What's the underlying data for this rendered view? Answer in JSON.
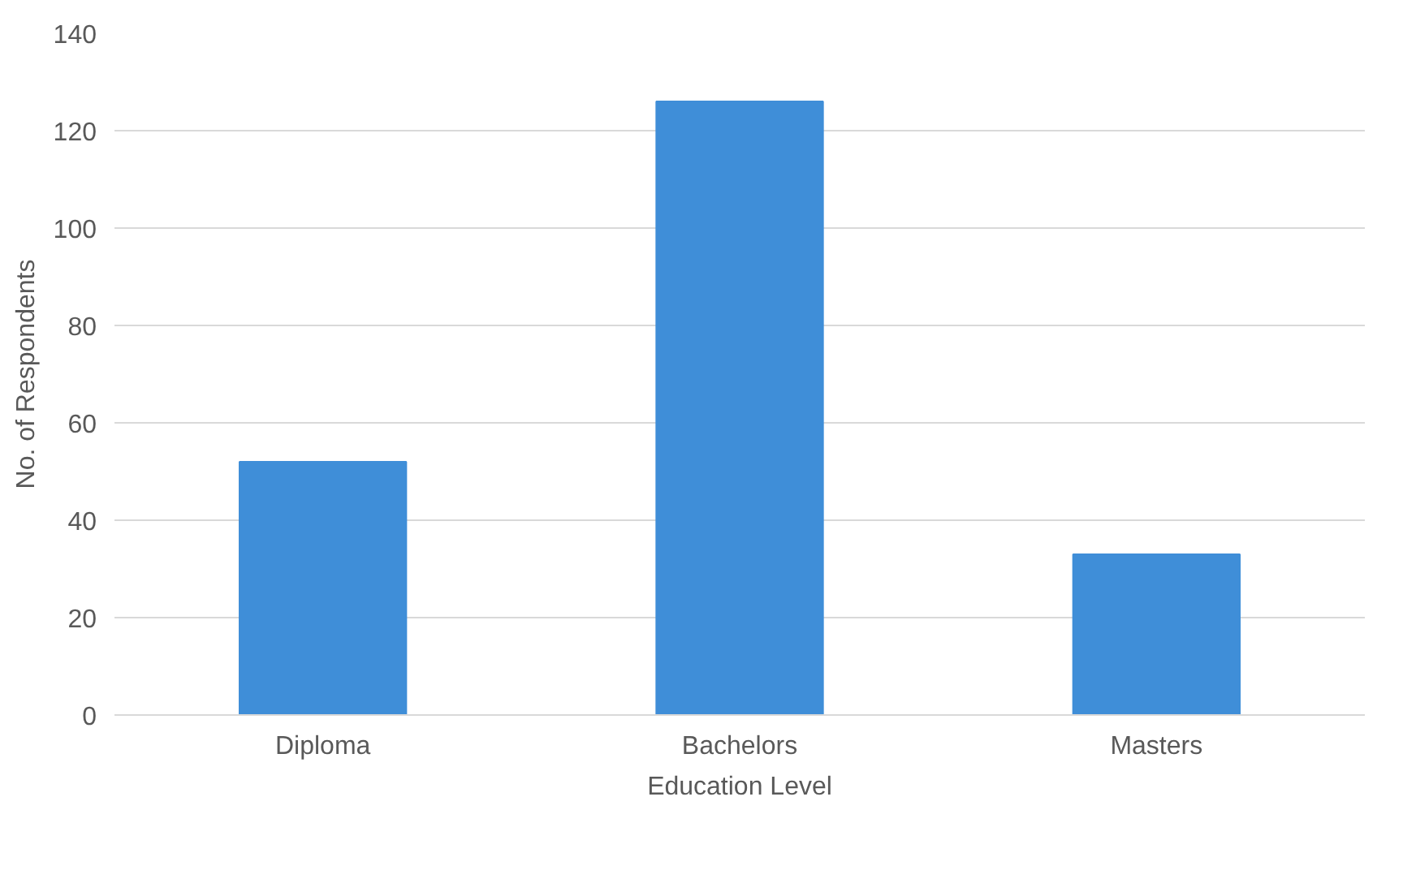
{
  "chart_data": {
    "type": "bar",
    "xlabel": "Education Level",
    "ylabel": "No. of Respondents",
    "categories": [
      "Diploma",
      "Bachelors",
      "Masters"
    ],
    "values": [
      52,
      126,
      33
    ],
    "color": "#3f8ed8",
    "ylim": [
      0,
      140
    ],
    "yticks": [
      0,
      20,
      40,
      60,
      80,
      100,
      120,
      140
    ],
    "grid": "y"
  }
}
